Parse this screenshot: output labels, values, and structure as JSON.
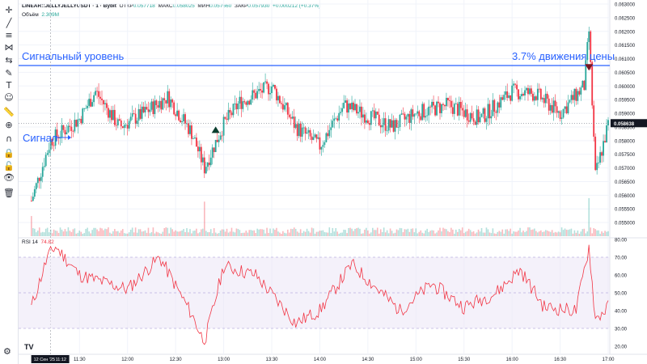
{
  "header": {
    "symbol": "LINEAR::JELLYJELLYUSDT · 1 · Bybit",
    "open_label": "ОТКР",
    "open": "0.057718",
    "high_label": "МАКС",
    "high": "0.058025",
    "low_label": "МИН",
    "low": "0.057660",
    "close_label": "ЗАКР",
    "close": "0.057930",
    "change": "+0.000212 (+0.37%)"
  },
  "volume_label": {
    "name": "Объём",
    "value": "2.309M"
  },
  "rsi_label": {
    "name": "RSI 14",
    "value": "74.82"
  },
  "annotations": {
    "signal_level": "Сигнальный уровень",
    "signal": "Сигнал",
    "move": "3.7% движения цены"
  },
  "toolbar_icons": [
    "cursor-icon",
    "trend-line-icon",
    "fib-icon",
    "pattern-icon",
    "measure-icon",
    "brush-icon",
    "text-icon",
    "emoji-icon",
    "ruler-icon",
    "zoom-icon",
    "magnet-icon",
    "lock-drawing-icon",
    "lock-icon",
    "eye-icon",
    "trash-icon"
  ],
  "chart_data": [
    {
      "type": "candlestick",
      "ylim": [
        0.0545,
        0.063
      ],
      "y_ticks": [
        "0.063000",
        "0.062500",
        "0.062000",
        "0.061500",
        "0.061000",
        "0.060500",
        "0.060000",
        "0.059500",
        "0.059000",
        "0.058500",
        "0.058000",
        "0.057500",
        "0.057000",
        "0.056500",
        "0.056000",
        "0.055500",
        "0.055000"
      ],
      "x_ticks": [
        "11:30",
        "12:00",
        "12:30",
        "13:00",
        "13:30",
        "14:00",
        "14:30",
        "15:00",
        "15:30",
        "16:00",
        "16:30",
        "17:00"
      ],
      "start_time_label": "12 Сен '25",
      "cursor_time": "11:12",
      "last_price": "0.058638",
      "last_price_color": "#131722",
      "signal_level_price": 0.06075,
      "signal_level_color": "#2962ff",
      "up_color": "#26a69a",
      "down_color": "#f23645",
      "key_points": [
        {
          "t": "11:00",
          "p": 0.0558
        },
        {
          "t": "11:12",
          "p": 0.058
        },
        {
          "t": "11:30",
          "p": 0.0588
        },
        {
          "t": "11:40",
          "p": 0.0598
        },
        {
          "t": "11:55",
          "p": 0.0585
        },
        {
          "t": "12:10",
          "p": 0.059
        },
        {
          "t": "12:25",
          "p": 0.0596
        },
        {
          "t": "12:40",
          "p": 0.0583
        },
        {
          "t": "12:48",
          "p": 0.057
        },
        {
          "t": "13:00",
          "p": 0.0586
        },
        {
          "t": "13:10",
          "p": 0.0594
        },
        {
          "t": "13:30",
          "p": 0.06
        },
        {
          "t": "13:45",
          "p": 0.0585
        },
        {
          "t": "14:00",
          "p": 0.0578
        },
        {
          "t": "14:15",
          "p": 0.0593
        },
        {
          "t": "14:45",
          "p": 0.0585
        },
        {
          "t": "15:00",
          "p": 0.059
        },
        {
          "t": "15:20",
          "p": 0.0593
        },
        {
          "t": "15:40",
          "p": 0.0588
        },
        {
          "t": "16:00",
          "p": 0.0598
        },
        {
          "t": "16:15",
          "p": 0.0597
        },
        {
          "t": "16:30",
          "p": 0.059
        },
        {
          "t": "16:45",
          "p": 0.06
        },
        {
          "t": "16:48",
          "p": 0.062
        },
        {
          "t": "16:52",
          "p": 0.0567
        },
        {
          "t": "17:00",
          "p": 0.0586
        }
      ]
    },
    {
      "type": "line",
      "name": "RSI 14",
      "ylim": [
        20,
        80
      ],
      "y_ticks": [
        "80.00",
        "70.00",
        "60.00",
        "50.00",
        "40.00",
        "30.00",
        "20.00"
      ],
      "bands": [
        70,
        50,
        30
      ],
      "line_color": "#f23645",
      "band_fill": "#ede7f6",
      "key_points": [
        {
          "t": "11:00",
          "v": 42
        },
        {
          "t": "11:10",
          "v": 70
        },
        {
          "t": "11:15",
          "v": 76
        },
        {
          "t": "11:30",
          "v": 60
        },
        {
          "t": "12:00",
          "v": 52
        },
        {
          "t": "12:20",
          "v": 70
        },
        {
          "t": "12:40",
          "v": 38
        },
        {
          "t": "12:48",
          "v": 22
        },
        {
          "t": "13:00",
          "v": 65
        },
        {
          "t": "13:20",
          "v": 60
        },
        {
          "t": "13:45",
          "v": 33
        },
        {
          "t": "14:00",
          "v": 40
        },
        {
          "t": "14:20",
          "v": 66
        },
        {
          "t": "14:50",
          "v": 40
        },
        {
          "t": "15:10",
          "v": 55
        },
        {
          "t": "15:30",
          "v": 42
        },
        {
          "t": "15:50",
          "v": 50
        },
        {
          "t": "16:05",
          "v": 63
        },
        {
          "t": "16:20",
          "v": 42
        },
        {
          "t": "16:40",
          "v": 40
        },
        {
          "t": "16:48",
          "v": 76
        },
        {
          "t": "16:52",
          "v": 35
        },
        {
          "t": "17:00",
          "v": 42
        }
      ]
    }
  ]
}
